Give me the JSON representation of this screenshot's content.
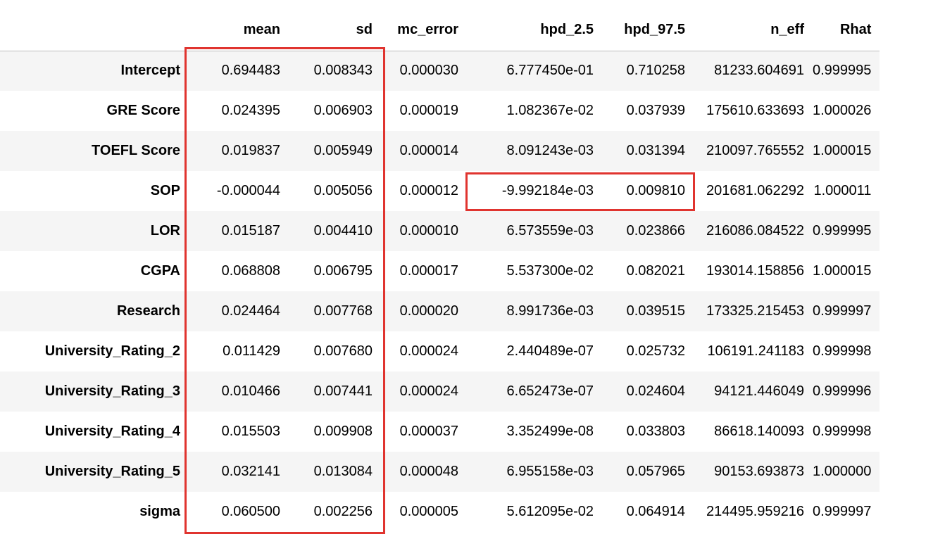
{
  "table": {
    "columns": [
      "mean",
      "sd",
      "mc_error",
      "hpd_2.5",
      "hpd_97.5",
      "n_eff",
      "Rhat"
    ],
    "rows": [
      {
        "label": "Intercept",
        "cells": [
          "0.694483",
          "0.008343",
          "0.000030",
          "6.777450e-01",
          "0.710258",
          "81233.604691",
          "0.999995"
        ]
      },
      {
        "label": "GRE Score",
        "cells": [
          "0.024395",
          "0.006903",
          "0.000019",
          "1.082367e-02",
          "0.037939",
          "175610.633693",
          "1.000026"
        ]
      },
      {
        "label": "TOEFL Score",
        "cells": [
          "0.019837",
          "0.005949",
          "0.000014",
          "8.091243e-03",
          "0.031394",
          "210097.765552",
          "1.000015"
        ]
      },
      {
        "label": "SOP",
        "cells": [
          "-0.000044",
          "0.005056",
          "0.000012",
          "-9.992184e-03",
          "0.009810",
          "201681.062292",
          "1.000011"
        ]
      },
      {
        "label": "LOR",
        "cells": [
          "0.015187",
          "0.004410",
          "0.000010",
          "6.573559e-03",
          "0.023866",
          "216086.084522",
          "0.999995"
        ]
      },
      {
        "label": "CGPA",
        "cells": [
          "0.068808",
          "0.006795",
          "0.000017",
          "5.537300e-02",
          "0.082021",
          "193014.158856",
          "1.000015"
        ]
      },
      {
        "label": "Research",
        "cells": [
          "0.024464",
          "0.007768",
          "0.000020",
          "8.991736e-03",
          "0.039515",
          "173325.215453",
          "0.999997"
        ]
      },
      {
        "label": "University_Rating_2",
        "cells": [
          "0.011429",
          "0.007680",
          "0.000024",
          "2.440489e-07",
          "0.025732",
          "106191.241183",
          "0.999998"
        ]
      },
      {
        "label": "University_Rating_3",
        "cells": [
          "0.010466",
          "0.007441",
          "0.000024",
          "6.652473e-07",
          "0.024604",
          "94121.446049",
          "0.999996"
        ]
      },
      {
        "label": "University_Rating_4",
        "cells": [
          "0.015503",
          "0.009908",
          "0.000037",
          "3.352499e-08",
          "0.033803",
          "86618.140093",
          "0.999998"
        ]
      },
      {
        "label": "University_Rating_5",
        "cells": [
          "0.032141",
          "0.013084",
          "0.000048",
          "6.955158e-03",
          "0.057965",
          "90153.693873",
          "1.000000"
        ]
      },
      {
        "label": "sigma",
        "cells": [
          "0.060500",
          "0.002256",
          "0.000005",
          "5.612095e-02",
          "0.064914",
          "214495.959216",
          "0.999997"
        ]
      }
    ]
  },
  "annotations": {
    "highlight_color": "#e0342f",
    "boxes": [
      {
        "name": "highlight-mean-sd-columns",
        "target": "mean and sd columns, all rows"
      },
      {
        "name": "highlight-sop-hpd",
        "target": "SOP row, hpd_2.5 and hpd_97.5"
      }
    ]
  }
}
